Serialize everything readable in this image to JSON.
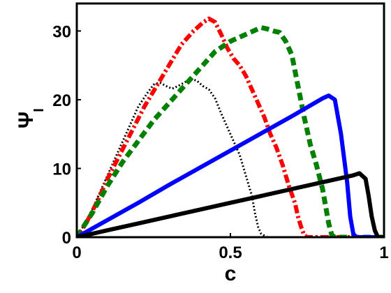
{
  "chart_data": {
    "type": "line",
    "title": "",
    "xlabel": "c",
    "ylabel": "Ψ",
    "ylabel_subscript": "I",
    "xlim": [
      0,
      1
    ],
    "ylim": [
      0,
      34
    ],
    "xticks": [
      0,
      0.5,
      1
    ],
    "xtick_labels": [
      "0",
      "0.5",
      "1"
    ],
    "yticks": [
      0,
      10,
      20,
      30
    ],
    "ytick_labels": [
      "0",
      "10",
      "20",
      "30"
    ],
    "grid": false,
    "legend": "none",
    "series": [
      {
        "color": "#000000",
        "style": "dotted",
        "points": [
          [
            0,
            0
          ],
          [
            0.02,
            1.5
          ],
          [
            0.05,
            4
          ],
          [
            0.08,
            7
          ],
          [
            0.11,
            10
          ],
          [
            0.14,
            13
          ],
          [
            0.17,
            16
          ],
          [
            0.2,
            19
          ],
          [
            0.23,
            21
          ],
          [
            0.25,
            22.2
          ],
          [
            0.27,
            22.5
          ],
          [
            0.29,
            22
          ],
          [
            0.31,
            21.6
          ],
          [
            0.33,
            22
          ],
          [
            0.35,
            22.5
          ],
          [
            0.37,
            23
          ],
          [
            0.39,
            22.8
          ],
          [
            0.41,
            22
          ],
          [
            0.43,
            21.5
          ],
          [
            0.45,
            20.2
          ],
          [
            0.47,
            18
          ],
          [
            0.49,
            16
          ],
          [
            0.51,
            14
          ],
          [
            0.53,
            12
          ],
          [
            0.55,
            9
          ],
          [
            0.57,
            6
          ],
          [
            0.58,
            3.5
          ],
          [
            0.59,
            1.5
          ],
          [
            0.6,
            0.5
          ],
          [
            0.62,
            0
          ],
          [
            1,
            0
          ]
        ]
      },
      {
        "color": "#ff0000",
        "style": "dash-dot",
        "points": [
          [
            0,
            0
          ],
          [
            0.03,
            2
          ],
          [
            0.07,
            5.5
          ],
          [
            0.1,
            8.5
          ],
          [
            0.14,
            12
          ],
          [
            0.18,
            15.5
          ],
          [
            0.22,
            19
          ],
          [
            0.26,
            22
          ],
          [
            0.3,
            25
          ],
          [
            0.34,
            28
          ],
          [
            0.38,
            30
          ],
          [
            0.41,
            31.2
          ],
          [
            0.43,
            31.8
          ],
          [
            0.45,
            31.3
          ],
          [
            0.47,
            29.5
          ],
          [
            0.49,
            27.5
          ],
          [
            0.51,
            26
          ],
          [
            0.53,
            25
          ],
          [
            0.55,
            23.5
          ],
          [
            0.57,
            21.5
          ],
          [
            0.59,
            19.5
          ],
          [
            0.61,
            17.5
          ],
          [
            0.63,
            15
          ],
          [
            0.65,
            13
          ],
          [
            0.67,
            10.5
          ],
          [
            0.69,
            7.5
          ],
          [
            0.71,
            5
          ],
          [
            0.72,
            3
          ],
          [
            0.73,
            1.5
          ],
          [
            0.74,
            0.3
          ],
          [
            0.75,
            0
          ],
          [
            1,
            0
          ]
        ]
      },
      {
        "color": "#008000",
        "style": "dashed",
        "points": [
          [
            0,
            0
          ],
          [
            0.05,
            3.5
          ],
          [
            0.1,
            7.5
          ],
          [
            0.15,
            11
          ],
          [
            0.2,
            14
          ],
          [
            0.25,
            17
          ],
          [
            0.3,
            19.5
          ],
          [
            0.35,
            22
          ],
          [
            0.4,
            24.5
          ],
          [
            0.45,
            27
          ],
          [
            0.5,
            28.5
          ],
          [
            0.55,
            29.5
          ],
          [
            0.6,
            30.5
          ],
          [
            0.62,
            30.3
          ],
          [
            0.64,
            30
          ],
          [
            0.66,
            29.8
          ],
          [
            0.68,
            28.5
          ],
          [
            0.7,
            26.5
          ],
          [
            0.72,
            22
          ],
          [
            0.74,
            17.5
          ],
          [
            0.76,
            13.5
          ],
          [
            0.78,
            10.5
          ],
          [
            0.8,
            7
          ],
          [
            0.81,
            4.5
          ],
          [
            0.82,
            2
          ],
          [
            0.83,
            0.3
          ],
          [
            0.84,
            0
          ],
          [
            1,
            0
          ]
        ]
      },
      {
        "color": "#0000ff",
        "style": "solid",
        "points": [
          [
            0,
            0
          ],
          [
            0.1,
            2.5
          ],
          [
            0.2,
            5
          ],
          [
            0.3,
            7.6
          ],
          [
            0.4,
            10.1
          ],
          [
            0.5,
            12.6
          ],
          [
            0.6,
            15.1
          ],
          [
            0.7,
            17.6
          ],
          [
            0.8,
            20.2
          ],
          [
            0.82,
            20.6
          ],
          [
            0.84,
            20
          ],
          [
            0.86,
            15
          ],
          [
            0.88,
            8
          ],
          [
            0.89,
            3
          ],
          [
            0.9,
            0.5
          ],
          [
            0.91,
            0
          ],
          [
            1,
            0
          ]
        ]
      },
      {
        "color": "#000000",
        "style": "solid",
        "points": [
          [
            0,
            0
          ],
          [
            0.1,
            1
          ],
          [
            0.2,
            2
          ],
          [
            0.3,
            3
          ],
          [
            0.4,
            4
          ],
          [
            0.5,
            5
          ],
          [
            0.6,
            6
          ],
          [
            0.7,
            7
          ],
          [
            0.8,
            8
          ],
          [
            0.9,
            9
          ],
          [
            0.92,
            9.3
          ],
          [
            0.94,
            8.5
          ],
          [
            0.95,
            6
          ],
          [
            0.96,
            3
          ],
          [
            0.97,
            1
          ],
          [
            0.98,
            0
          ],
          [
            1,
            0
          ]
        ]
      }
    ]
  }
}
